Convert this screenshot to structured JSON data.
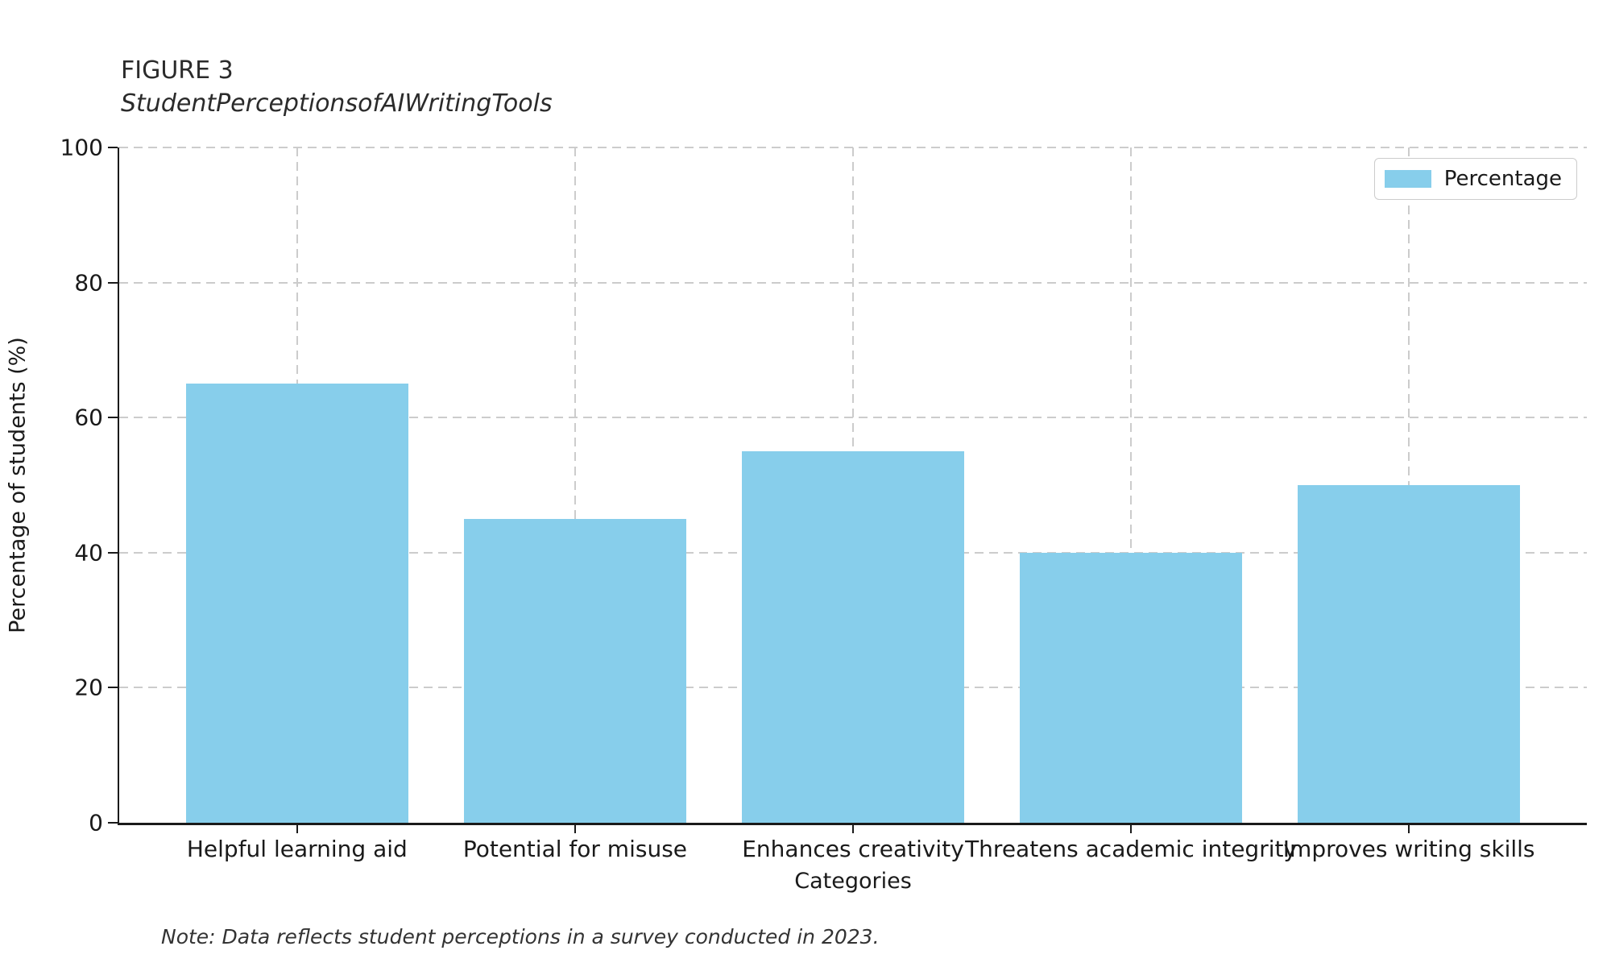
{
  "figure": {
    "label": "FIGURE 3",
    "title": "StudentPerceptionsofAIWritingTools",
    "note": "Note: Data reflects student perceptions in a survey conducted in 2023."
  },
  "chart_data": {
    "type": "bar",
    "categories": [
      "Helpful learning aid",
      "Potential for misuse",
      "Enhances creativity",
      "Threatens academic integrity",
      "Improves writing skills"
    ],
    "values": [
      65,
      45,
      55,
      40,
      50
    ],
    "series_name": "Percentage",
    "title": "StudentPerceptionsofAIWritingTools",
    "xlabel": "Categories",
    "ylabel": "Percentage of students (%)",
    "ylim": [
      0,
      100
    ],
    "yticks": [
      0,
      20,
      40,
      60,
      80,
      100
    ],
    "bar_color": "#87CEEB",
    "grid": "dashed",
    "grid_color": "#cccccc",
    "legend_position": "upper right"
  }
}
